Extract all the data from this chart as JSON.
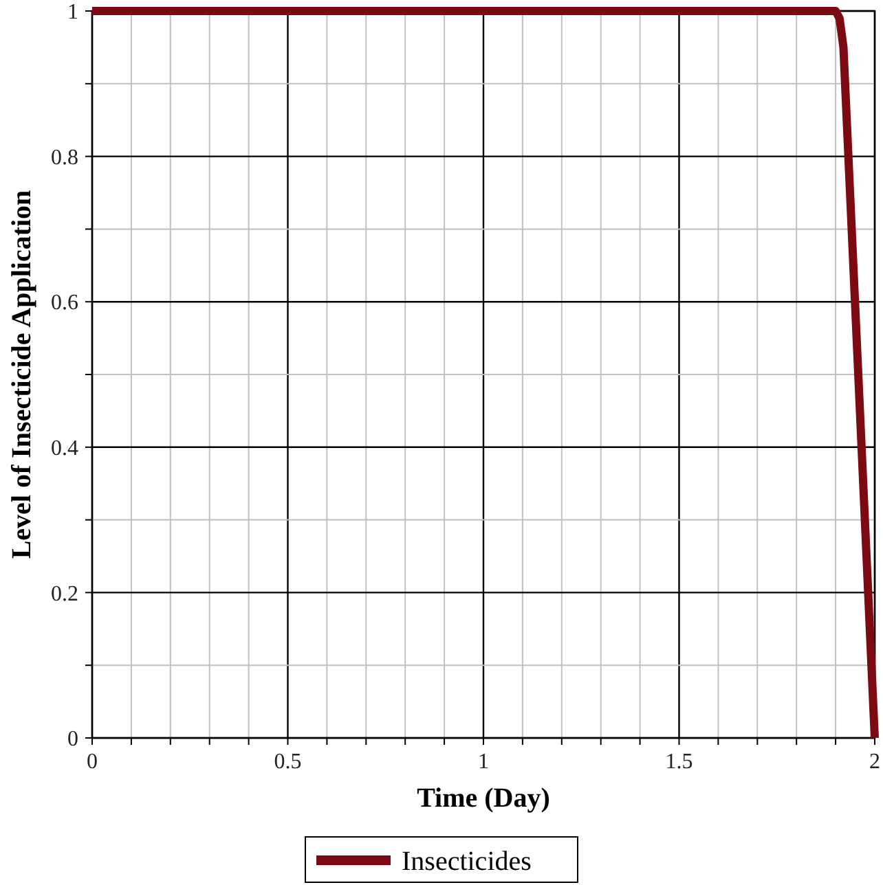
{
  "chart_data": {
    "type": "line",
    "xlabel": "Time (Day)",
    "ylabel": "Level of Insecticide Application",
    "series": [
      {
        "name": "Insecticides",
        "color": "#7b0a12",
        "x": [
          0,
          1.9,
          1.91,
          1.92,
          2
        ],
        "values": [
          1,
          1,
          0.99,
          0.95,
          0
        ]
      }
    ],
    "xlim": [
      0,
      2
    ],
    "ylim": [
      0,
      1
    ],
    "xticks": [
      0,
      {
        "value": 0.1,
        "label": null
      },
      {
        "value": 0.2,
        "label": null
      },
      {
        "value": 0.3,
        "label": null
      },
      {
        "value": 0.4,
        "label": null
      },
      0.5,
      {
        "value": 0.6,
        "label": null
      },
      {
        "value": 0.7,
        "label": null
      },
      {
        "value": 0.8,
        "label": null
      },
      {
        "value": 0.9,
        "label": null
      },
      1,
      {
        "value": 1.1,
        "label": null
      },
      {
        "value": 1.2,
        "label": null
      },
      {
        "value": 1.3,
        "label": null
      },
      {
        "value": 1.4,
        "label": null
      },
      1.5,
      {
        "value": 1.6,
        "label": null
      },
      {
        "value": 1.7,
        "label": null
      },
      {
        "value": 1.8,
        "label": null
      },
      {
        "value": 1.9,
        "label": null
      },
      2
    ],
    "yticks": [
      0,
      {
        "value": 0.1,
        "label": null
      },
      0.2,
      {
        "value": 0.3,
        "label": null
      },
      0.4,
      {
        "value": 0.5,
        "label": null
      },
      0.6,
      {
        "value": 0.7,
        "label": null
      },
      0.8,
      {
        "value": 0.9,
        "label": null
      },
      1
    ],
    "grid": true,
    "legend": "bottom",
    "marker": "none",
    "line_style": "solid"
  }
}
